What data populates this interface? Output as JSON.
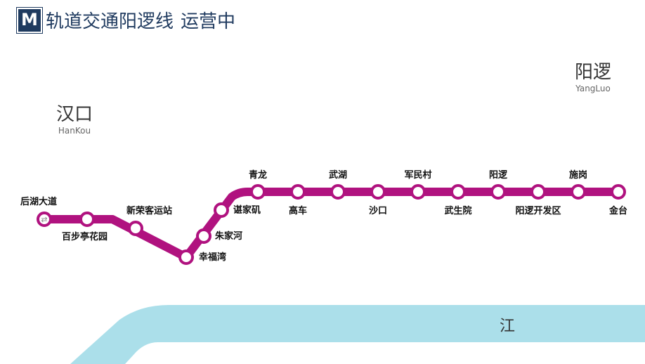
{
  "header": {
    "logo": "M",
    "title": "轨道交通阳逻线",
    "status": "运营中"
  },
  "districts": [
    {
      "cn": "汉口",
      "en": "HanKou"
    },
    {
      "cn": "阳逻",
      "en": "YangLuo"
    }
  ],
  "river": {
    "label": "江",
    "color": "#abdfea"
  },
  "line": {
    "color": "#b0127f"
  },
  "stations": [
    "后湖大道",
    "百步亭花园",
    "新荣客运站",
    "幸福湾",
    "朱家河",
    "谌家矶",
    "青龙",
    "高车",
    "武湖",
    "沙口",
    "军民村",
    "武生院",
    "阳逻",
    "阳逻开发区",
    "施岗",
    "金台"
  ],
  "transfer_station_icon": "transfer-arrows-icon"
}
